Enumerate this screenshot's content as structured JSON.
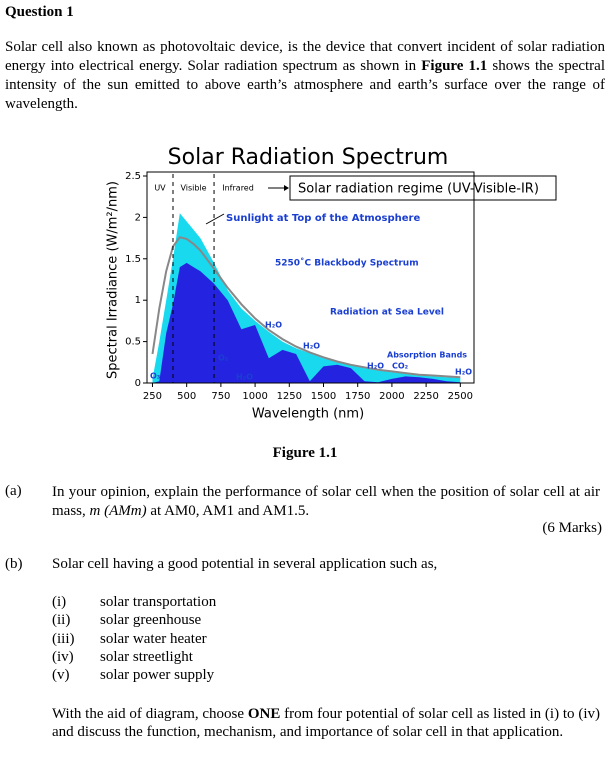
{
  "question_title": "Question 1",
  "intro": [
    "Solar cell also known as photovoltaic device, is the device that convert incident of solar radiation energy into electrical energy. Solar radiation spectrum as shown in ",
    "Figure 1.1",
    " shows the spectral intensity of the sun emitted to above earth’s atmosphere and earth’s surface over the range of wavelength."
  ],
  "chart_data": {
    "type": "area",
    "title": "Solar Radiation Spectrum",
    "x_label": "Wavelength (nm)",
    "y_label": "Spectral Irradiance (W/m²/nm)",
    "xlim": [
      210,
      2600
    ],
    "ylim": [
      0,
      2.5
    ],
    "xticks": [
      250,
      500,
      750,
      1000,
      1250,
      1500,
      1750,
      2000,
      2250,
      2500
    ],
    "yticks": [
      0,
      0.5,
      1,
      1.5,
      2,
      2.5
    ],
    "region_bounds": [
      400,
      700
    ],
    "region_labels": [
      "UV",
      "Visible",
      "Infrared"
    ],
    "regime_label": "Solar radiation regime (UV-Visible-IR)",
    "absorption_label": "Absorption Bands",
    "molecule_labels": [
      "H₂O",
      "H₂O",
      "O₂",
      "H₂O",
      "O₃",
      "H₂O",
      "CO₂",
      "H₂O"
    ],
    "x": [
      250,
      300,
      350,
      400,
      450,
      500,
      550,
      600,
      700,
      800,
      900,
      1000,
      1100,
      1200,
      1300,
      1400,
      1500,
      1600,
      1700,
      1800,
      1900,
      2000,
      2100,
      2200,
      2300,
      2400,
      2500
    ],
    "series": [
      {
        "name": "Sunlight at Top of the Atmosphere",
        "color": "#19d9ef",
        "fill": true,
        "values": [
          0.05,
          0.5,
          1.0,
          1.5,
          2.05,
          1.95,
          1.85,
          1.75,
          1.45,
          1.12,
          0.9,
          0.75,
          0.62,
          0.5,
          0.42,
          0.36,
          0.3,
          0.26,
          0.22,
          0.18,
          0.15,
          0.13,
          0.11,
          0.09,
          0.08,
          0.07,
          0.06
        ]
      },
      {
        "name": "Radiation at Sea Level",
        "color": "#2424e0",
        "fill": true,
        "values": [
          0,
          0.02,
          0.6,
          0.95,
          1.4,
          1.45,
          1.4,
          1.35,
          1.2,
          1.0,
          0.65,
          0.7,
          0.3,
          0.4,
          0.35,
          0.02,
          0.2,
          0.22,
          0.18,
          0.02,
          0.01,
          0.05,
          0.08,
          0.07,
          0.05,
          0.02,
          0.01
        ]
      },
      {
        "name": "5250˚C Blackbody Spectrum",
        "color": "#888888",
        "fill": false,
        "values": [
          0.35,
          0.9,
          1.35,
          1.65,
          1.76,
          1.74,
          1.68,
          1.6,
          1.38,
          1.15,
          0.95,
          0.78,
          0.64,
          0.53,
          0.44,
          0.37,
          0.31,
          0.26,
          0.22,
          0.19,
          0.16,
          0.14,
          0.12,
          0.1,
          0.09,
          0.08,
          0.07
        ]
      }
    ]
  },
  "figure_caption": "Figure 1.1",
  "part_a": {
    "label": "(a)",
    "text": [
      "In your opinion, explain the performance of solar cell when the position of solar cell at air mass, ",
      "m (AMm)",
      " at AM0, AM1 and AM1.5."
    ],
    "marks": "(6 Marks)"
  },
  "part_b": {
    "label": "(b)",
    "text": "Solar cell having a good potential in several application such as,",
    "items": [
      {
        "label": "(i)",
        "text": "solar transportation"
      },
      {
        "label": "(ii)",
        "text": "solar greenhouse"
      },
      {
        "label": "(iii)",
        "text": "solar water heater"
      },
      {
        "label": "(iv)",
        "text": "solar streetlight"
      },
      {
        "label": "(v)",
        "text": "solar power supply"
      }
    ],
    "closing": [
      "With the aid of diagram, choose ",
      "ONE",
      " from four potential of solar cell as listed in (i) to (iv) and discuss the function, mechanism, and importance of solar cell in that application."
    ]
  }
}
